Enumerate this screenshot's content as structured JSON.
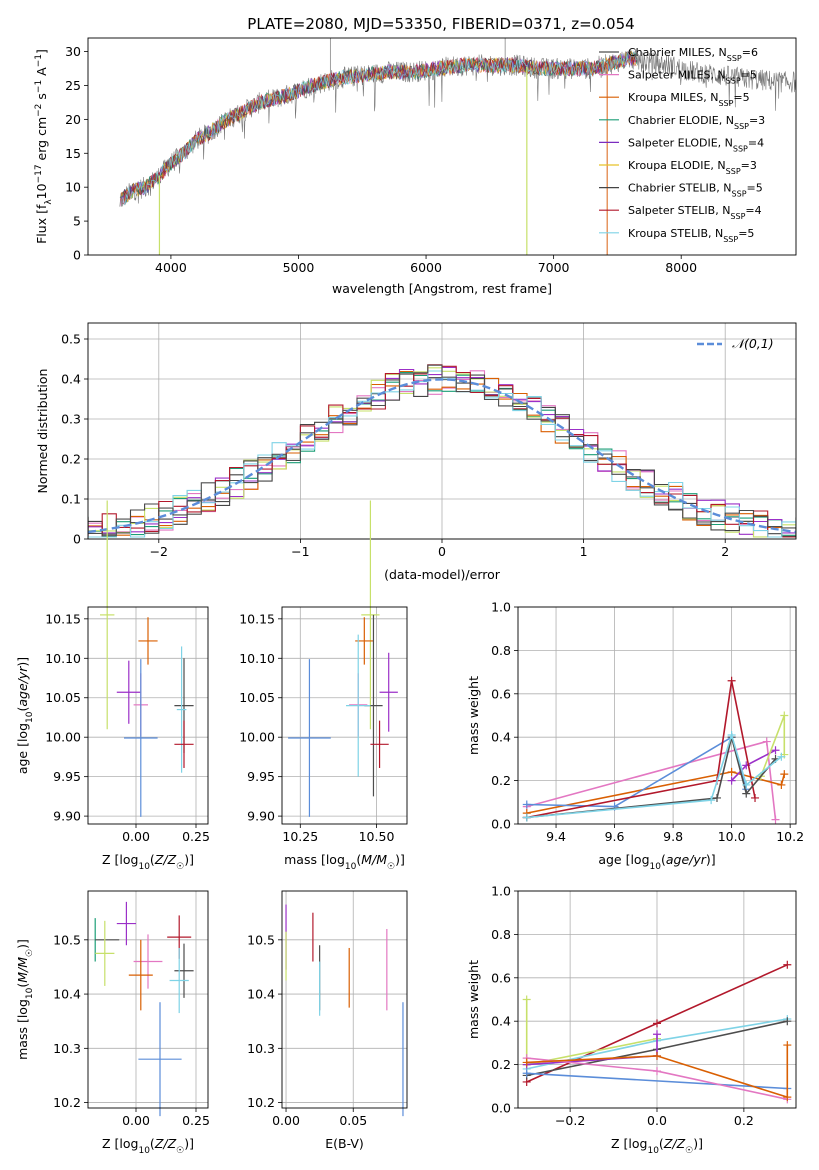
{
  "figure": {
    "title": "PLATE=2080, MJD=53350, FIBERID=0371, z=0.054"
  },
  "model_colors": [
    "#4d4d4d",
    "#e377c2",
    "#d95f02",
    "#1b9e77",
    "#7b2cbf",
    "#e6c229",
    "#444444",
    "#b2182b",
    "#7fd3e6"
  ],
  "chart_data": [
    {
      "id": "spectrum",
      "type": "line",
      "title": "PLATE=2080, MJD=53350, FIBERID=0371, z=0.054",
      "xlabel": "wavelength [Angstrom, rest frame]",
      "ylabel": "Flux [f_λ 10^-17 erg cm^-2 s^-1 A^-1]",
      "xlim": [
        3350,
        8900
      ],
      "ylim": [
        0,
        32
      ],
      "xticks": [
        4000,
        5000,
        6000,
        7000,
        8000
      ],
      "yticks": [
        0,
        5,
        10,
        15,
        20,
        25,
        30
      ],
      "legend_loc": "right",
      "legend": [
        {
          "base": "Chabrier MILES, N",
          "sub": "SSP",
          "tail": "=6"
        },
        {
          "base": "Salpeter MILES, N",
          "sub": "SSP",
          "tail": "=5"
        },
        {
          "base": "Kroupa MILES, N",
          "sub": "SSP",
          "tail": "=5"
        },
        {
          "base": "Chabrier ELODIE, N",
          "sub": "SSP",
          "tail": "=3"
        },
        {
          "base": "Salpeter ELODIE, N",
          "sub": "SSP",
          "tail": "=4"
        },
        {
          "base": "Kroupa ELODIE, N",
          "sub": "SSP",
          "tail": "=3"
        },
        {
          "base": "Chabrier STELIB, N",
          "sub": "SSP",
          "tail": "=5"
        },
        {
          "base": "Salpeter STELIB, N",
          "sub": "SSP",
          "tail": "=4"
        },
        {
          "base": "Kroupa STELIB, N",
          "sub": "SSP",
          "tail": "=5"
        }
      ],
      "continuum": {
        "x": [
          3600,
          3700,
          3800,
          3900,
          4000,
          4100,
          4200,
          4300,
          4400,
          4500,
          4700,
          4900,
          5100,
          5300,
          5500,
          5700,
          5900,
          6100,
          6300,
          6500,
          6700,
          6900,
          7100,
          7300,
          7500,
          7600,
          7700,
          7900,
          8100,
          8300,
          8500,
          8800
        ],
        "y": [
          8,
          9.5,
          10,
          11.5,
          13.5,
          15,
          17,
          18,
          19.5,
          20.5,
          22.5,
          23.5,
          25,
          26,
          26.5,
          27,
          27,
          27.5,
          28,
          28,
          28,
          27.5,
          27.5,
          27.5,
          28.5,
          29,
          28.5,
          28,
          27,
          26.5,
          26,
          25.5
        ],
        "range": [
          3600,
          7500
        ]
      },
      "dropouts": [
        3910,
        6790,
        7420
      ],
      "spikes": [
        5250,
        6620
      ]
    },
    {
      "id": "residuals",
      "type": "histogram",
      "xlabel": "(data-model)/error",
      "ylabel": "Normed distribution",
      "xlim": [
        -2.5,
        2.5
      ],
      "ylim": [
        0,
        0.54
      ],
      "xticks": [
        -2,
        -1,
        0,
        1,
        2
      ],
      "yticks": [
        0.0,
        0.1,
        0.2,
        0.3,
        0.4,
        0.5
      ],
      "bin_width": 0.1,
      "reference": {
        "name": "𝒩(0,1)",
        "mean": 0,
        "sigma": 1,
        "color": "#5b8dd9"
      },
      "legend_loc": "upper right"
    },
    {
      "id": "age_vs_Z",
      "type": "errorbar",
      "xlabel": "Z [log10(Z/Z☉)]",
      "ylabel": "age  [log10(age/yr)]",
      "xlim": [
        -0.2,
        0.3
      ],
      "ylim": [
        9.89,
        10.165
      ],
      "xticks": [
        0.0,
        0.25
      ],
      "xtick_labels": [
        "0.00",
        "0.25"
      ],
      "yticks": [
        9.9,
        9.95,
        10.0,
        10.05,
        10.1,
        10.15
      ],
      "ytick_labels": [
        "9.90",
        "9.95",
        "10.00",
        "10.05",
        "10.10",
        "10.15"
      ],
      "points": [
        {
          "x": -0.12,
          "y": 10.155,
          "xerr": 0.03,
          "yerr": 0.145,
          "color": "#c7e06a"
        },
        {
          "x": 0.05,
          "y": 10.122,
          "xerr": 0.04,
          "yerr": 0.03,
          "color": "#d95f02"
        },
        {
          "x": -0.03,
          "y": 10.057,
          "xerr": 0.05,
          "yerr": 0.04,
          "color": "#9b30c8"
        },
        {
          "x": 0.02,
          "y": 10.041,
          "xerr": 0.03,
          "yerr": 0.04,
          "color": "#e377c2"
        },
        {
          "x": 0.2,
          "y": 10.04,
          "xerr": 0.04,
          "yerr": 0.06,
          "color": "#4d4d4d"
        },
        {
          "x": 0.02,
          "y": 9.999,
          "xerr": 0.07,
          "yerr": 0.1,
          "color": "#5b8dd9"
        },
        {
          "x": 0.19,
          "y": 10.035,
          "xerr": 0.02,
          "yerr": 0.08,
          "color": "#7fd3e6"
        },
        {
          "x": 0.2,
          "y": 9.991,
          "xerr": 0.04,
          "yerr": 0.03,
          "color": "#b2182b"
        }
      ]
    },
    {
      "id": "age_vs_mass",
      "type": "errorbar",
      "xlabel": "mass [log10(M/M☉)]",
      "ylabel": "",
      "xlim": [
        10.19,
        10.6
      ],
      "ylim": [
        9.89,
        10.165
      ],
      "xticks": [
        10.25,
        10.5
      ],
      "xtick_labels": [
        "10.25",
        "10.50"
      ],
      "yticks": [
        9.9,
        9.95,
        10.0,
        10.05,
        10.1,
        10.15
      ],
      "ytick_labels": [
        "9.90",
        "9.95",
        "10.00",
        "10.05",
        "10.10",
        "10.15"
      ],
      "points": [
        {
          "x": 10.48,
          "y": 10.155,
          "xerr": 0.03,
          "yerr": 0.145,
          "color": "#c7e06a"
        },
        {
          "x": 10.46,
          "y": 10.122,
          "xerr": 0.03,
          "yerr": 0.03,
          "color": "#d95f02"
        },
        {
          "x": 10.54,
          "y": 10.057,
          "xerr": 0.03,
          "yerr": 0.05,
          "color": "#9b30c8"
        },
        {
          "x": 10.44,
          "y": 10.041,
          "xerr": 0.03,
          "yerr": 0.04,
          "color": "#e377c2"
        },
        {
          "x": 10.49,
          "y": 10.04,
          "xerr": 0.03,
          "yerr": 0.115,
          "color": "#4d4d4d"
        },
        {
          "x": 10.28,
          "y": 9.999,
          "xerr": 0.07,
          "yerr": 0.1,
          "color": "#5b8dd9"
        },
        {
          "x": 10.44,
          "y": 10.04,
          "xerr": 0.04,
          "yerr": 0.09,
          "color": "#7fd3e6"
        },
        {
          "x": 10.51,
          "y": 9.991,
          "xerr": 0.03,
          "yerr": 0.03,
          "color": "#b2182b"
        }
      ]
    },
    {
      "id": "weight_vs_age",
      "type": "line",
      "xlabel": "age  [log10(age/yr)]",
      "ylabel": "mass weight",
      "xlim": [
        9.27,
        10.22
      ],
      "ylim": [
        0,
        1
      ],
      "xticks": [
        9.4,
        9.6,
        9.8,
        10.0,
        10.2
      ],
      "xtick_labels": [
        "9.4",
        "9.6",
        "9.8",
        "10.0",
        "10.2"
      ],
      "yticks": [
        0,
        0.2,
        0.4,
        0.6,
        0.8,
        1.0
      ],
      "ytick_labels": [
        "0.0",
        "0.2",
        "0.4",
        "0.6",
        "0.8",
        "1.0"
      ],
      "series": [
        {
          "color": "#e377c2",
          "x": [
            9.3,
            10.12,
            10.15
          ],
          "y": [
            0.08,
            0.38,
            0.02
          ]
        },
        {
          "color": "#d95f02",
          "x": [
            9.3,
            10.0,
            10.17,
            10.18
          ],
          "y": [
            0.05,
            0.24,
            0.18,
            0.23
          ]
        },
        {
          "color": "#5b8dd9",
          "x": [
            9.3,
            9.6,
            10.0,
            10.05
          ],
          "y": [
            0.09,
            0.08,
            0.4,
            0.16
          ]
        },
        {
          "color": "#9b30c8",
          "x": [
            10.0,
            10.05,
            10.15
          ],
          "y": [
            0.2,
            0.27,
            0.34
          ]
        },
        {
          "color": "#b2182b",
          "x": [
            9.3,
            9.95,
            10.0,
            10.08
          ],
          "y": [
            0.03,
            0.2,
            0.66,
            0.12
          ]
        },
        {
          "color": "#c7e06a",
          "x": [
            10.1,
            10.18,
            10.18
          ],
          "y": [
            0.22,
            0.5,
            0.32
          ]
        },
        {
          "color": "#4d4d4d",
          "x": [
            9.3,
            9.95,
            10.0,
            10.05,
            10.15
          ],
          "y": [
            0.03,
            0.12,
            0.4,
            0.14,
            0.3
          ]
        },
        {
          "color": "#7fd3e6",
          "x": [
            9.3,
            9.93,
            10.0,
            10.05,
            10.17
          ],
          "y": [
            0.03,
            0.11,
            0.41,
            0.18,
            0.31
          ]
        }
      ]
    },
    {
      "id": "mass_vs_Z",
      "type": "errorbar",
      "xlabel": "Z [log10(Z/Z☉)]",
      "ylabel": "mass [log10(M/M☉)]",
      "xlim": [
        -0.2,
        0.3
      ],
      "ylim": [
        10.19,
        10.59
      ],
      "xticks": [
        0.0,
        0.25
      ],
      "xtick_labels": [
        "0.00",
        "0.25"
      ],
      "yticks": [
        10.2,
        10.3,
        10.4,
        10.5
      ],
      "ytick_labels": [
        "10.2",
        "10.3",
        "10.4",
        "10.5"
      ],
      "points": [
        {
          "x": -0.17,
          "y": 10.5,
          "xerr": 0.0,
          "yerr": 0.04,
          "color": "#1b9e77"
        },
        {
          "x": -0.12,
          "y": 10.5,
          "xerr": 0.05,
          "yerr": 0.0,
          "color": "#4d4d4d"
        },
        {
          "x": -0.04,
          "y": 10.53,
          "xerr": 0.04,
          "yerr": 0.04,
          "color": "#9b30c8"
        },
        {
          "x": -0.13,
          "y": 10.475,
          "xerr": 0.04,
          "yerr": 0.06,
          "color": "#c7e06a"
        },
        {
          "x": 0.05,
          "y": 10.46,
          "xerr": 0.06,
          "yerr": 0.05,
          "color": "#e377c2"
        },
        {
          "x": 0.02,
          "y": 10.435,
          "xerr": 0.05,
          "yerr": 0.065,
          "color": "#d95f02"
        },
        {
          "x": 0.18,
          "y": 10.505,
          "xerr": 0.05,
          "yerr": 0.04,
          "color": "#b2182b"
        },
        {
          "x": 0.2,
          "y": 10.443,
          "xerr": 0.04,
          "yerr": 0.05,
          "color": "#4d4d4d"
        },
        {
          "x": 0.18,
          "y": 10.425,
          "xerr": 0.04,
          "yerr": 0.06,
          "color": "#7fd3e6"
        },
        {
          "x": 0.1,
          "y": 10.28,
          "xerr": 0.09,
          "yerr": 0.105,
          "color": "#5b8dd9"
        }
      ]
    },
    {
      "id": "mass_vs_ebv",
      "type": "errorbar",
      "xlabel": "E(B-V)",
      "ylabel": "",
      "xlim": [
        -0.003,
        0.09
      ],
      "ylim": [
        10.19,
        10.59
      ],
      "xticks": [
        0.0,
        0.05
      ],
      "xtick_labels": [
        "0.00",
        "0.05"
      ],
      "yticks": [
        10.2,
        10.3,
        10.4,
        10.5
      ],
      "ytick_labels": [
        "10.2",
        "10.3",
        "10.4",
        "10.5"
      ],
      "points": [
        {
          "x": 0.0,
          "y": 10.505,
          "xerr": 0,
          "yerr": 0.06,
          "color": "#9b30c8"
        },
        {
          "x": 0.0,
          "y": 10.47,
          "xerr": 0,
          "yerr": 0.045,
          "color": "#c7e06a"
        },
        {
          "x": 0.02,
          "y": 10.505,
          "xerr": 0,
          "yerr": 0.045,
          "color": "#b2182b"
        },
        {
          "x": 0.025,
          "y": 10.43,
          "xerr": 0,
          "yerr": 0.06,
          "color": "#4d4d4d"
        },
        {
          "x": 0.025,
          "y": 10.41,
          "xerr": 0,
          "yerr": 0.05,
          "color": "#7fd3e6"
        },
        {
          "x": 0.047,
          "y": 10.43,
          "xerr": 0,
          "yerr": 0.055,
          "color": "#d95f02"
        },
        {
          "x": 0.075,
          "y": 10.445,
          "xerr": 0,
          "yerr": 0.075,
          "color": "#e377c2"
        },
        {
          "x": 0.087,
          "y": 10.28,
          "xerr": 0,
          "yerr": 0.105,
          "color": "#5b8dd9"
        }
      ]
    },
    {
      "id": "weight_vs_Z",
      "type": "line",
      "xlabel": "Z [log10(Z/Z☉)]",
      "ylabel": "mass weight",
      "xlim": [
        -0.32,
        0.32
      ],
      "ylim": [
        0,
        1
      ],
      "xticks": [
        -0.2,
        0.0,
        0.2
      ],
      "xtick_labels": [
        "−0.2",
        "0.0",
        "0.2"
      ],
      "yticks": [
        0,
        0.2,
        0.4,
        0.6,
        0.8,
        1.0
      ],
      "ytick_labels": [
        "0.0",
        "0.2",
        "0.4",
        "0.6",
        "0.8",
        "1.0"
      ],
      "series": [
        {
          "color": "#b2182b",
          "x": [
            -0.3,
            0.0,
            0.3
          ],
          "y": [
            0.12,
            0.39,
            0.66
          ]
        },
        {
          "color": "#7fd3e6",
          "x": [
            -0.3,
            0.0,
            0.3
          ],
          "y": [
            0.18,
            0.31,
            0.41
          ]
        },
        {
          "color": "#4d4d4d",
          "x": [
            -0.3,
            0.0,
            0.3
          ],
          "y": [
            0.15,
            0.27,
            0.4
          ]
        },
        {
          "color": "#c7e06a",
          "x": [
            -0.3,
            -0.3,
            0.0
          ],
          "y": [
            0.5,
            0.2,
            0.32
          ]
        },
        {
          "color": "#9b30c8",
          "x": [
            -0.3,
            0.0,
            0.0
          ],
          "y": [
            0.2,
            0.24,
            0.34
          ]
        },
        {
          "color": "#5b8dd9",
          "x": [
            -0.3,
            0.3
          ],
          "y": [
            0.16,
            0.09
          ]
        },
        {
          "color": "#e377c2",
          "x": [
            -0.3,
            0.0,
            0.3
          ],
          "y": [
            0.23,
            0.17,
            0.04
          ]
        },
        {
          "color": "#d95f02",
          "x": [
            -0.3,
            0.0,
            0.3,
            0.3
          ],
          "y": [
            0.21,
            0.24,
            0.05,
            0.29
          ]
        }
      ]
    }
  ]
}
